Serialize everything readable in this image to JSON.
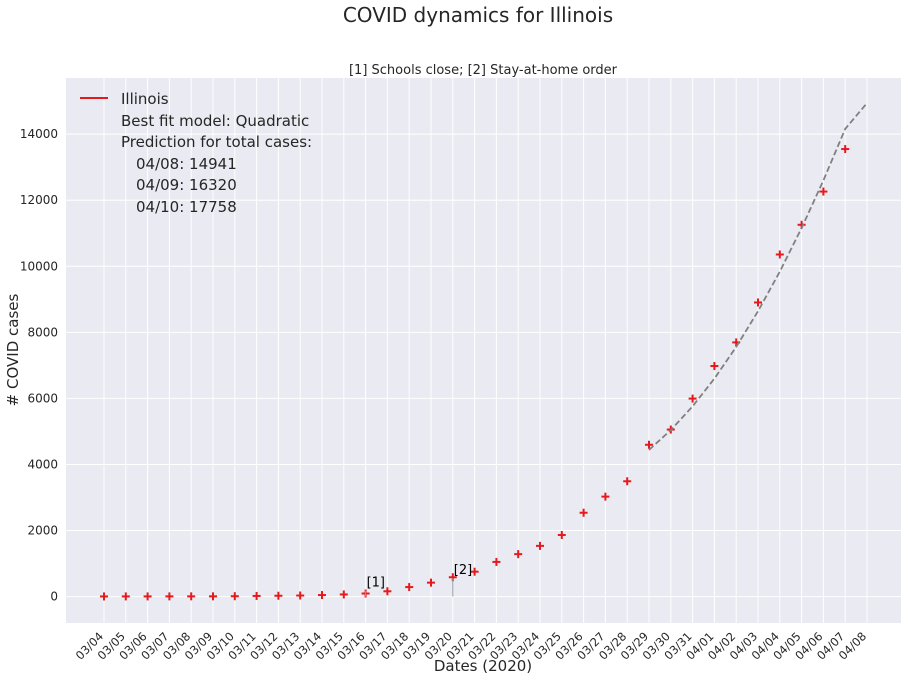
{
  "figure_title": "COVID dynamics for Illinois",
  "chart_data": {
    "type": "scatter",
    "title": "[1] Schools close; [2] Stay-at-home order",
    "xlabel": "Dates (2020)",
    "ylabel": "# COVID cases",
    "ylim": [
      -800,
      15700
    ],
    "yticks": [
      0,
      2000,
      4000,
      6000,
      8000,
      10000,
      12000,
      14000
    ],
    "grid": true,
    "categories": [
      "03/04",
      "03/05",
      "03/06",
      "03/07",
      "03/08",
      "03/09",
      "03/10",
      "03/11",
      "03/12",
      "03/13",
      "03/14",
      "03/15",
      "03/16",
      "03/17",
      "03/18",
      "03/19",
      "03/20",
      "03/21",
      "03/22",
      "03/23",
      "03/24",
      "03/25",
      "03/26",
      "03/27",
      "03/28",
      "03/29",
      "03/30",
      "03/31",
      "04/01",
      "04/02",
      "04/03",
      "04/04",
      "04/05",
      "04/06",
      "04/07",
      "04/08"
    ],
    "series": [
      {
        "name": "Illinois",
        "marker": "+",
        "color": "#e41a1c",
        "x": [
          "03/04",
          "03/05",
          "03/06",
          "03/07",
          "03/08",
          "03/09",
          "03/10",
          "03/11",
          "03/12",
          "03/13",
          "03/14",
          "03/15",
          "03/16",
          "03/17",
          "03/18",
          "03/19",
          "03/20",
          "03/21",
          "03/22",
          "03/23",
          "03/24",
          "03/25",
          "03/26",
          "03/27",
          "03/28",
          "03/29",
          "03/30",
          "03/31",
          "04/01",
          "04/02",
          "04/03",
          "04/04",
          "04/05",
          "04/06",
          "04/07"
        ],
        "values": [
          4,
          5,
          5,
          6,
          7,
          7,
          11,
          19,
          25,
          32,
          46,
          64,
          93,
          160,
          288,
          422,
          585,
          753,
          1049,
          1285,
          1535,
          1865,
          2538,
          3026,
          3491,
          4596,
          5057,
          5994,
          6980,
          7695,
          8904,
          10357,
          11256,
          12262,
          13549
        ]
      },
      {
        "name": "",
        "style": "dashed",
        "color": "#808080",
        "x": [
          "03/29",
          "03/30",
          "03/31",
          "04/01",
          "04/02",
          "04/03",
          "04/04",
          "04/05",
          "04/06",
          "04/07",
          "04/08"
        ],
        "values": [
          4440,
          5040,
          5760,
          6600,
          7560,
          8640,
          9840,
          11160,
          12600,
          14160,
          14941
        ]
      }
    ],
    "annotations": [
      {
        "text": "[1]",
        "x": "03/16",
        "y": 300
      },
      {
        "text": "[2]",
        "x": "03/20",
        "y": 680
      }
    ],
    "legend": {
      "position": "top-left",
      "series_label": "Illinois",
      "lines": [
        "Best fit model: Quadratic",
        "Prediction for total cases:",
        " 04/08: 14941",
        " 04/09: 16320",
        " 04/10: 17758"
      ]
    },
    "colors": {
      "background": "#eaeaf2",
      "grid": "#ffffff",
      "marker": "#e41a1c",
      "fit": "#808080"
    }
  }
}
